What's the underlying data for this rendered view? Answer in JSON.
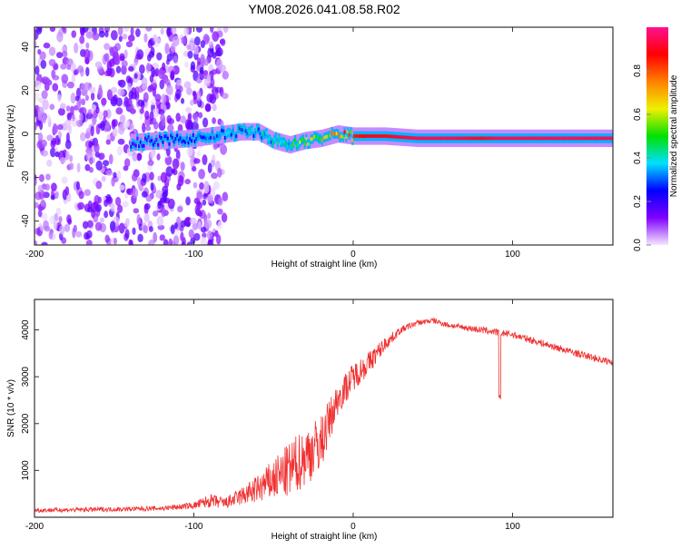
{
  "title": "YM08.2026.041.08.58.R02",
  "chart_data": [
    {
      "type": "heatmap",
      "xlabel": "Height of straight line (km)",
      "ylabel": "Frequency (Hz)",
      "xlim": [
        -200,
        163
      ],
      "ylim": [
        -51,
        49
      ],
      "xticks": [
        -200,
        -100,
        0,
        100
      ],
      "yticks": [
        -40,
        -20,
        0,
        20,
        40
      ],
      "colorbar": {
        "label": "Normalized spectral amplitude",
        "range": [
          0,
          1
        ],
        "ticks": [
          "0.0",
          "0.2",
          "0.4",
          "0.6",
          "0.8"
        ],
        "colors": [
          "#f4e8ff",
          "#8000ff",
          "#0000ff",
          "#00e0ff",
          "#00e000",
          "#f0f000",
          "#ff8000",
          "#ff0000",
          "#ff1090"
        ]
      },
      "ridge": {
        "x": [
          -140,
          -120,
          -100,
          -80,
          -70,
          -60,
          -50,
          -40,
          -30,
          -20,
          -10,
          0,
          10,
          20,
          40,
          60,
          80,
          90,
          100,
          120,
          163
        ],
        "frequency": [
          -4,
          -3,
          -2,
          0,
          1,
          1,
          -3,
          -5,
          -3,
          -2,
          0,
          -1,
          -1,
          -1,
          -2,
          -2,
          -2,
          -2,
          -2,
          -2,
          -2
        ],
        "amplitude": [
          0.2,
          0.25,
          0.3,
          0.35,
          0.45,
          0.4,
          0.45,
          0.55,
          0.6,
          0.7,
          0.8,
          0.85,
          0.9,
          0.9,
          0.95,
          0.95,
          0.9,
          0.95,
          0.95,
          0.95,
          0.95
        ]
      },
      "noise_region_x": [
        -200,
        -80
      ]
    },
    {
      "type": "line",
      "xlabel": "Height of straight line (km)",
      "ylabel": "SNR (10 * v/v)",
      "xlim": [
        -200,
        163
      ],
      "ylim": [
        0,
        4650
      ],
      "xticks": [
        -200,
        -100,
        0,
        100
      ],
      "yticks": [
        1000,
        2000,
        3000,
        4000
      ],
      "color": "#f03030",
      "series": [
        {
          "name": "SNR",
          "x": [
            -200,
            -150,
            -120,
            -100,
            -90,
            -80,
            -70,
            -60,
            -50,
            -40,
            -30,
            -20,
            -10,
            0,
            10,
            20,
            30,
            40,
            50,
            60,
            70,
            80,
            90,
            100,
            120,
            140,
            163
          ],
          "y": [
            150,
            170,
            190,
            250,
            350,
            300,
            450,
            600,
            800,
            1000,
            1300,
            1600,
            2500,
            3000,
            3300,
            3700,
            4000,
            4150,
            4200,
            4100,
            4050,
            4000,
            3950,
            3900,
            3700,
            3500,
            3300
          ],
          "noise": [
            100,
            100,
            100,
            150,
            300,
            250,
            400,
            600,
            900,
            1200,
            1300,
            1200,
            700,
            600,
            500,
            300,
            150,
            120,
            120,
            120,
            120,
            150,
            150,
            150,
            150,
            150,
            150
          ]
        }
      ]
    }
  ]
}
